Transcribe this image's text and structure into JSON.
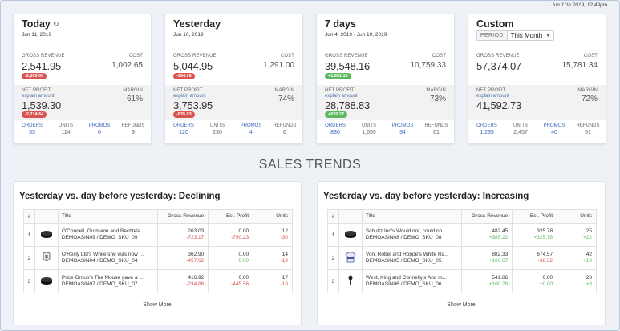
{
  "timestamp": "Jun 11th 2019, 12:49pm",
  "cards": [
    {
      "title": "Today",
      "date": "Jun 11, 2019",
      "gross_revenue_label": "GROSS REVENUE",
      "gross_revenue": "2,541.95",
      "gross_badge": "-2,503.00",
      "gross_badge_color": "#d9534f",
      "cost_label": "COST",
      "cost": "1,002.65",
      "net_profit_label": "NET PROFIT",
      "explain_label": "explain amount",
      "net_profit": "1,539.30",
      "net_badge": "-2,214.64",
      "net_badge_color": "#d9534f",
      "margin_label": "MARGIN",
      "margin": "61%",
      "stats": [
        {
          "label": "ORDERS",
          "value": "55"
        },
        {
          "label": "UNITS",
          "value": "114"
        },
        {
          "label": "PROMOS",
          "value": "0"
        },
        {
          "label": "REFUNDS",
          "value": "9"
        }
      ]
    },
    {
      "title": "Yesterday",
      "date": "Jun 10, 2019",
      "gross_revenue_label": "GROSS REVENUE",
      "gross_revenue": "5,044.95",
      "gross_badge": "-994.09",
      "gross_badge_color": "#d9534f",
      "cost_label": "COST",
      "cost": "1,291.00",
      "net_profit_label": "NET PROFIT",
      "explain_label": "explain amount",
      "net_profit": "3,753.95",
      "net_badge": "-835.03",
      "net_badge_color": "#d9534f",
      "margin_label": "MARGIN",
      "margin": "74%",
      "stats": [
        {
          "label": "ORDERS",
          "value": "120"
        },
        {
          "label": "UNITS",
          "value": "230"
        },
        {
          "label": "PROMOS",
          "value": "4"
        },
        {
          "label": "REFUNDS",
          "value": "6"
        }
      ]
    },
    {
      "title": "7 days",
      "date": "Jun 4, 2019 - Jun 10, 2019",
      "gross_revenue_label": "GROSS REVENUE",
      "gross_revenue": "39,548.16",
      "gross_badge": "+1,851.15",
      "gross_badge_color": "#5cb85c",
      "cost_label": "COST",
      "cost": "10,759.33",
      "net_profit_label": "NET PROFIT",
      "explain_label": "explain amount",
      "net_profit": "28,788.83",
      "net_badge": "+620.27",
      "net_badge_color": "#5cb85c",
      "margin_label": "MARGIN",
      "margin": "73%",
      "stats": [
        {
          "label": "ORDERS",
          "value": "830"
        },
        {
          "label": "UNITS",
          "value": "1,659"
        },
        {
          "label": "PROMOS",
          "value": "34"
        },
        {
          "label": "REFUNDS",
          "value": "61"
        }
      ]
    },
    {
      "title": "Custom",
      "period_label": "PERIOD",
      "period_value": "This Month",
      "gross_revenue_label": "GROSS REVENUE",
      "gross_revenue": "57,374.07",
      "cost_label": "COST",
      "cost": "15,781.34",
      "net_profit_label": "NET PROFIT",
      "explain_label": "explain amount",
      "net_profit": "41,592.73",
      "margin_label": "MARGIN",
      "margin": "72%",
      "stats": [
        {
          "label": "ORDERS",
          "value": "1,235"
        },
        {
          "label": "UNITS",
          "value": "2,457"
        },
        {
          "label": "PROMOS",
          "value": "40"
        },
        {
          "label": "REFUNDS",
          "value": "91"
        }
      ]
    }
  ],
  "trends_title": "SALES TRENDS",
  "table_headers": [
    "#",
    "",
    "Title",
    "Gross Revenue",
    "Est. Profit",
    "Units"
  ],
  "panels": [
    {
      "title": "Yesterday vs. day before yesterday: Declining",
      "show_more": "Show More",
      "rows": [
        {
          "num": "1",
          "icon": "hockey-puck-icon",
          "title": "O'Connell, Gutmann and Bechtela...",
          "sku": "DEMOASIN09 / DEMO_SKU_09",
          "rev": "263.03",
          "rev_delta": "-723.17",
          "profit": "0.00",
          "profit_delta": "-790.23",
          "units": "12",
          "units_delta": "-30"
        },
        {
          "num": "2",
          "icon": "goalie-mask-icon",
          "title": "O'Reilly Ltd's While she was now ...",
          "sku": "DEMOASIN04 / DEMO_SKU_04",
          "rev": "362.90",
          "rev_delta": "-457.62",
          "profit": "0.00",
          "profit_delta": "+0.00",
          "units": "14",
          "units_delta": "-19"
        },
        {
          "num": "3",
          "icon": "hockey-puck-icon",
          "title": "Price Group's The Mouse gave a ...",
          "sku": "DEMOASIN07 / DEMO_SKU_07",
          "rev": "416.92",
          "rev_delta": "-234.88",
          "profit": "0.00",
          "profit_delta": "-445.56",
          "units": "17",
          "units_delta": "-10"
        }
      ]
    },
    {
      "title": "Yesterday vs. day before yesterday: Increasing",
      "show_more": "Show More",
      "rows": [
        {
          "num": "1",
          "icon": "hockey-puck-icon",
          "title": "Schultz Inc's Would not, could no...",
          "sku": "DEMOASIN08 / DEMO_SKU_08",
          "rev": "482.45",
          "rev_delta": "+385.22",
          "profit": "325.78",
          "profit_delta": "+325.78",
          "units": "25",
          "units_delta": "+22"
        },
        {
          "num": "2",
          "icon": "jersey-icon",
          "title": "Von, Robel and Hoppe's White Ra...",
          "sku": "DEMOASIN05 / DEMO_SKU_05",
          "rev": "882.33",
          "rev_delta": "+106.07",
          "profit": "674.57",
          "profit_delta": "-38.32",
          "units": "42",
          "units_delta": "+10"
        },
        {
          "num": "3",
          "icon": "microphone-icon",
          "title": "West, King and Connelly's And m...",
          "sku": "DEMOASIN06 / DEMO_SKU_06",
          "rev": "541.86",
          "rev_delta": "+100.29",
          "profit": "0.00",
          "profit_delta": "+0.00",
          "units": "28",
          "units_delta": "+8"
        }
      ]
    }
  ]
}
